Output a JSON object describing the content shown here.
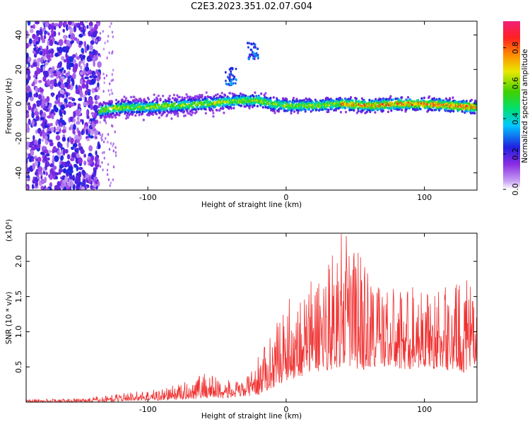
{
  "title": "C2E3.2023.351.02.07.G04",
  "chart_data": [
    {
      "type": "heatmap",
      "xlabel": "Height of straight line (km)",
      "ylabel": "Frequency (Hz)",
      "xlim": [
        -188,
        138
      ],
      "ylim": [
        -50,
        48
      ],
      "xticks": [
        -100,
        0,
        100
      ],
      "yticks": [
        -40,
        -20,
        0,
        20,
        40
      ],
      "colorbar": {
        "label": "Normalized spectral amplitude",
        "range": [
          0,
          0.95
        ],
        "ticks": [
          0.0,
          0.2,
          0.4,
          0.6,
          0.8
        ],
        "tick_labels": [
          "0.0",
          "0.2",
          "0.4",
          "0.6",
          "0.8"
        ],
        "colors": [
          "#ffffff",
          "#c6a0f2",
          "#8a2be2",
          "#2020e0",
          "#00c8ff",
          "#00e070",
          "#40d000",
          "#e8e800",
          "#ff8c00",
          "#ff2020",
          "#f02078"
        ]
      },
      "ridge": {
        "x": [
          -135,
          -120,
          -100,
          -80,
          -60,
          -45,
          -30,
          -20,
          -10,
          0,
          20,
          40,
          60,
          80,
          100,
          120,
          138
        ],
        "frequency": [
          -4,
          -2,
          -2,
          -1,
          0,
          1,
          2,
          2,
          0,
          -1,
          -1,
          0,
          -1,
          0,
          0,
          -1,
          -2
        ]
      },
      "noise_region": {
        "x": [
          -188,
          -135
        ],
        "frequency": [
          -50,
          48
        ]
      },
      "features": [
        {
          "x": -40,
          "frequency": 16
        },
        {
          "x": -24,
          "frequency": 31
        }
      ]
    },
    {
      "type": "line",
      "xlabel": "Height of straight line (km)",
      "ylabel": "SNR (10 * v/v)",
      "y_multiplier": "(x10⁴)",
      "xlim": [
        -188,
        138
      ],
      "ylim": [
        0,
        2.4
      ],
      "xticks": [
        -100,
        0,
        100
      ],
      "yticks": [
        0.5,
        1.0,
        1.5,
        2.0
      ],
      "color": "#f03030",
      "envelope": {
        "x": [
          -188,
          -150,
          -130,
          -110,
          -90,
          -70,
          -60,
          -40,
          -30,
          -20,
          -10,
          0,
          10,
          20,
          30,
          40,
          50,
          60,
          70,
          80,
          90,
          100,
          110,
          120,
          130,
          138
        ],
        "min": [
          0.0,
          0.0,
          0.0,
          0.02,
          0.02,
          0.04,
          0.05,
          0.05,
          0.08,
          0.1,
          0.2,
          0.3,
          0.35,
          0.4,
          0.45,
          0.5,
          0.45,
          0.45,
          0.5,
          0.45,
          0.45,
          0.5,
          0.45,
          0.45,
          0.4,
          0.5
        ],
        "max": [
          0.04,
          0.05,
          0.1,
          0.15,
          0.2,
          0.3,
          0.45,
          0.3,
          0.3,
          0.65,
          1.0,
          1.45,
          1.6,
          1.8,
          2.1,
          2.4,
          2.3,
          1.9,
          1.7,
          1.6,
          1.7,
          1.6,
          1.6,
          1.7,
          1.75,
          1.5
        ]
      }
    }
  ]
}
